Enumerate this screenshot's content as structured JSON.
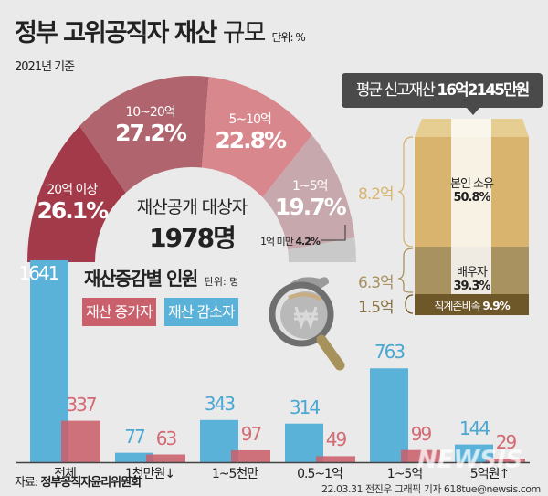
{
  "header": {
    "title_bold": "정부 고위공직자 재산",
    "title_light": "규모",
    "unit": "단위: %",
    "basis": "2021년 기준"
  },
  "colors": {
    "increase": "#c9606b",
    "decrease": "#5ab2d8",
    "own": "#d8b46f",
    "spouse": "#a89260",
    "lineal": "#6e5729"
  },
  "chart_data": [
    {
      "type": "pie",
      "subtype": "half-donut",
      "center_label": "재산공개 대상자",
      "center_value": "1978명",
      "slices": [
        {
          "label": "20억 이상",
          "value": 26.1,
          "display": "26.1%",
          "color": "#a33a4a"
        },
        {
          "label": "10~20억",
          "value": 27.2,
          "display": "27.2%",
          "color": "#b0646e"
        },
        {
          "label": "5~10억",
          "value": 22.8,
          "display": "22.8%",
          "color": "#d8878c"
        },
        {
          "label": "1~5억",
          "value": 19.7,
          "display": "19.7%",
          "color": "#c7a8ac"
        },
        {
          "label": "1억 미만",
          "value": 4.2,
          "display": "4.2%",
          "color": "#c9c9c9"
        }
      ]
    },
    {
      "type": "bar",
      "title": "재산증감별 인원",
      "unit": "단위: 명",
      "categories": [
        "전체",
        "1천만원↓",
        "1~5천만",
        "0.5~1억",
        "1~5억",
        "5억원↑"
      ],
      "series": [
        {
          "name": "재산 감소자",
          "values": [
            1641,
            77,
            343,
            314,
            763,
            144
          ]
        },
        {
          "name": "재산 증가자",
          "values": [
            337,
            63,
            97,
            49,
            99,
            29
          ]
        }
      ]
    },
    {
      "type": "bar",
      "subtype": "stacked-box",
      "title": "평균 신고재산 16억2145만원",
      "segments": [
        {
          "label": "본인 소유",
          "percent": "50.8%",
          "amount": "8.2억",
          "value": 8.2
        },
        {
          "label": "배우자",
          "percent": "39.3%",
          "amount": "6.3억",
          "value": 6.3
        },
        {
          "label": "직계존비속",
          "percent": "9.9%",
          "amount": "1.5억",
          "value": 1.5
        }
      ]
    }
  ],
  "tooltip": {
    "prefix": "평균 신고재산 ",
    "value": "16억2145만원"
  },
  "footer": {
    "source_label": "자료: ",
    "source": "정부공직자윤리위원회",
    "credit": "22.03.31 전진우 그래픽 기자 618tue@newsis.com",
    "watermark": "NEWSIS"
  }
}
